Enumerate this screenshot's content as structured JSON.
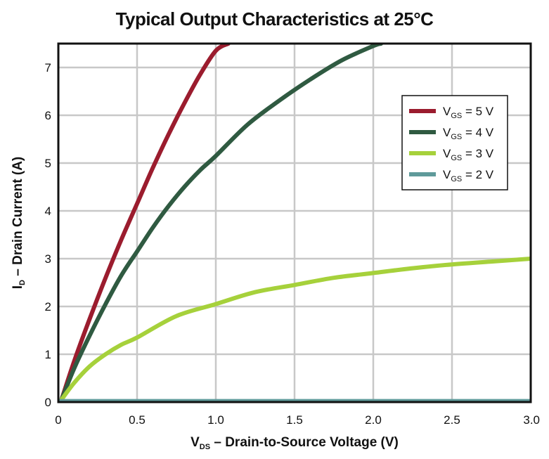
{
  "chart_data": {
    "type": "line",
    "title": "Typical Output Characteristics at 25°C",
    "xlabel": {
      "main": "V",
      "sub": "DS",
      "rest": " – Drain-to-Source Voltage (V)"
    },
    "ylabel": {
      "main": "I",
      "sub": "D",
      "rest": " – Drain Current (A)"
    },
    "xlim": [
      0,
      3.0
    ],
    "ylim": [
      0,
      7.5
    ],
    "x_ticks": [
      0,
      0.5,
      1.0,
      1.5,
      2.0,
      2.5,
      3.0
    ],
    "x_tick_labels": [
      "0",
      "0.5",
      "1.0",
      "1.5",
      "2.0",
      "2.5",
      "3.0"
    ],
    "y_ticks": [
      0,
      1,
      2,
      3,
      4,
      5,
      6,
      7
    ],
    "y_tick_labels": [
      "0",
      "1",
      "2",
      "3",
      "4",
      "5",
      "6",
      "7"
    ],
    "grid": true,
    "legend_position": "top-right",
    "series": [
      {
        "name": "V_GS = 5 V",
        "legend": {
          "main": "V",
          "sub": "GS",
          "rest": " = 5 V"
        },
        "color": "#9b1c2e",
        "x": [
          0.02,
          0.1,
          0.2,
          0.3,
          0.4,
          0.5,
          0.6,
          0.7,
          0.8,
          0.9,
          1.0,
          1.08
        ],
        "y": [
          0.05,
          0.85,
          1.75,
          2.6,
          3.4,
          4.15,
          4.9,
          5.6,
          6.25,
          6.85,
          7.35,
          7.5
        ]
      },
      {
        "name": "V_GS = 4 V",
        "legend": {
          "main": "V",
          "sub": "GS",
          "rest": " = 4 V"
        },
        "color": "#2f5a41",
        "x": [
          0.02,
          0.1,
          0.2,
          0.3,
          0.4,
          0.5,
          0.6,
          0.7,
          0.8,
          0.9,
          1.0,
          1.2,
          1.4,
          1.6,
          1.8,
          2.0,
          2.05
        ],
        "y": [
          0.05,
          0.7,
          1.4,
          2.05,
          2.65,
          3.15,
          3.65,
          4.1,
          4.5,
          4.85,
          5.15,
          5.8,
          6.3,
          6.75,
          7.15,
          7.45,
          7.5
        ]
      },
      {
        "name": "V_GS = 3 V",
        "legend": {
          "main": "V",
          "sub": "GS",
          "rest": " = 3 V"
        },
        "color": "#a6d13b",
        "x": [
          0.02,
          0.1,
          0.2,
          0.3,
          0.4,
          0.5,
          0.75,
          1.0,
          1.25,
          1.5,
          1.75,
          2.0,
          2.25,
          2.5,
          2.75,
          3.0
        ],
        "y": [
          0.05,
          0.4,
          0.75,
          1.0,
          1.2,
          1.35,
          1.8,
          2.05,
          2.3,
          2.45,
          2.6,
          2.7,
          2.8,
          2.88,
          2.94,
          3.0
        ]
      },
      {
        "name": "V_GS = 2 V",
        "legend": {
          "main": "V",
          "sub": "GS",
          "rest": " = 2 V"
        },
        "color": "#5f9a9a",
        "x": [
          0.0,
          3.0
        ],
        "y": [
          0.02,
          0.02
        ]
      }
    ]
  }
}
